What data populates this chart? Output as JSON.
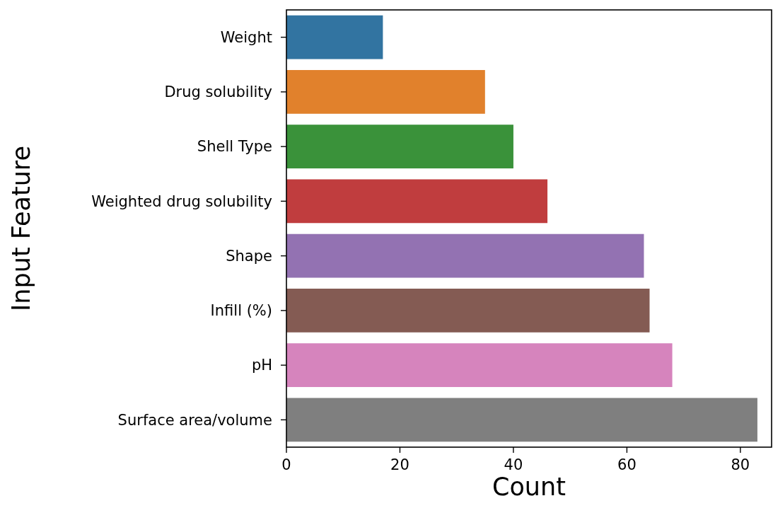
{
  "chart_data": {
    "type": "bar",
    "orientation": "horizontal",
    "xlabel": "Count",
    "ylabel": "Input Feature",
    "categories": [
      "Weight",
      "Drug solubility",
      "Shell Type",
      "Weighted drug solubility",
      "Shape",
      "Infill (%)",
      "pH",
      "Surface area/volume"
    ],
    "values": [
      17,
      35,
      40,
      46,
      63,
      64,
      68,
      83
    ],
    "colors": [
      "#3274a1",
      "#e1812c",
      "#3a923a",
      "#c03d3e",
      "#9372b2",
      "#845b53",
      "#d684bd",
      "#7f7f7f"
    ],
    "xlim": [
      0,
      85.5
    ],
    "xticks": [
      0,
      20,
      40,
      60,
      80
    ],
    "grid": false
  }
}
